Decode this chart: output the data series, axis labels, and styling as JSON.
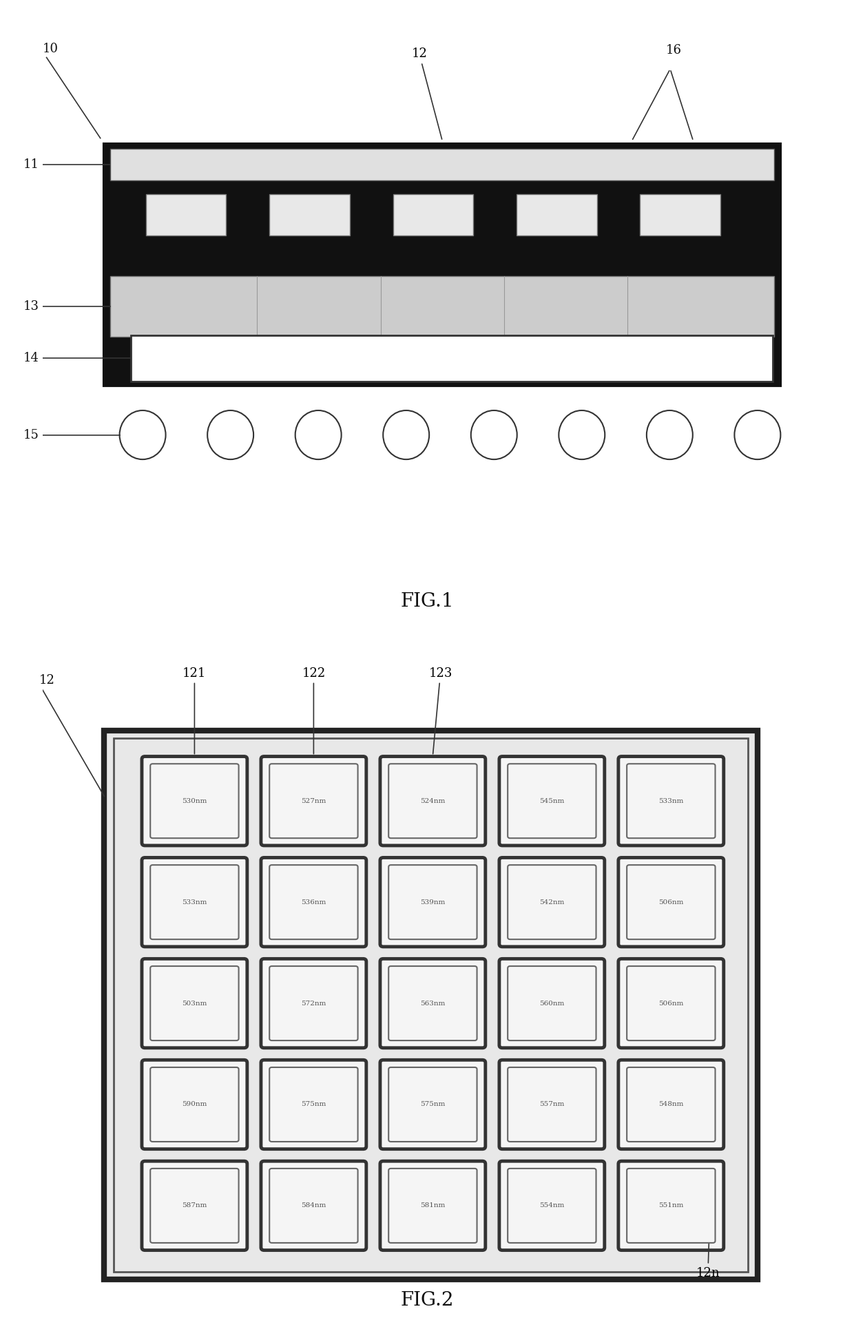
{
  "fig1": {
    "title": "FIG.1",
    "n_solder_balls": 8,
    "n_filter_cells": 5
  },
  "fig2": {
    "title": "FIG.2",
    "grid_labels": [
      [
        "530nm",
        "527nm",
        "524nm",
        "545nm",
        "533nm"
      ],
      [
        "533nm",
        "536nm",
        "539nm",
        "542nm",
        "506nm"
      ],
      [
        "503nm",
        "572nm",
        "563nm",
        "560nm",
        "506nm"
      ],
      [
        "590nm",
        "575nm",
        "575nm",
        "557nm",
        "548nm"
      ],
      [
        "587nm",
        "584nm",
        "581nm",
        "554nm",
        "551nm"
      ]
    ]
  },
  "white": "#ffffff",
  "black": "#000000",
  "dark_gray": "#222222",
  "light_gray": "#dddddd",
  "mid_gray": "#888888",
  "cell_bg": "#f0f0f0"
}
